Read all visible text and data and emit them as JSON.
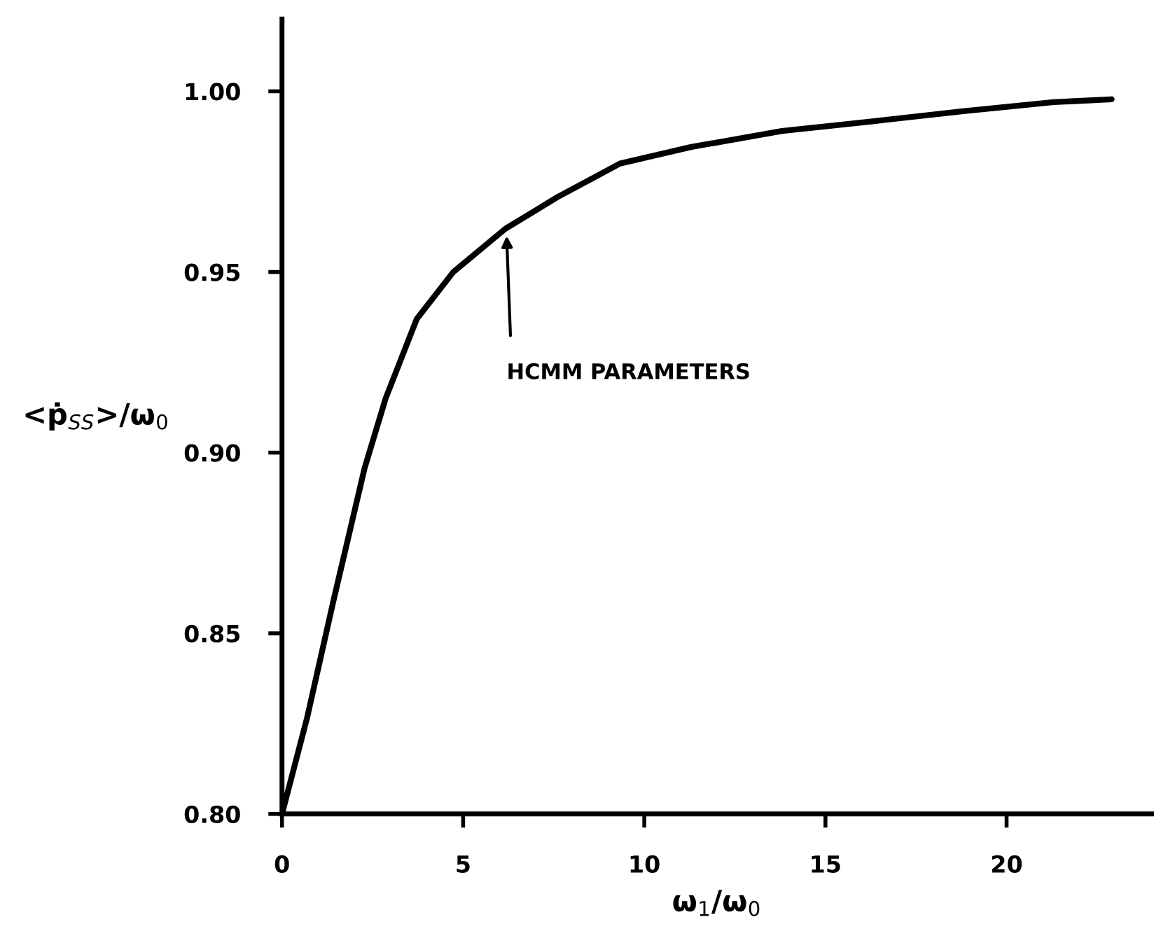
{
  "chart_data": {
    "type": "line",
    "xlabel": "ω$_{1}$/ω$_{0}$",
    "ylabel": "<ṗ$_{SS}$>/ω$_{0}$",
    "xlim": [
      0,
      24
    ],
    "ylim": [
      0.8,
      1.02
    ],
    "xticks": [
      0,
      5,
      10,
      15,
      20
    ],
    "yticks": [
      {
        "value": 0.8,
        "label": "0.80"
      },
      {
        "value": 0.85,
        "label": "0.85"
      },
      {
        "value": 0.9,
        "label": "0.90"
      },
      {
        "value": 0.95,
        "label": "0.95"
      },
      {
        "value": 1.0,
        "label": "1.00"
      }
    ],
    "grid": false,
    "marker": "none",
    "line_style": "solid",
    "annotations": [
      {
        "text": "HCMM PARAMETERS",
        "x": 6.2,
        "y": 0.96
      }
    ],
    "series": [
      {
        "color": "#000000",
        "x": [
          0,
          0.69,
          1.42,
          2.28,
          2.86,
          3.72,
          4.73,
          6.17,
          7.6,
          9.33,
          11.3,
          13.8,
          16.3,
          18.8,
          21.3,
          22.9
        ],
        "values": [
          0.8,
          0.8265,
          0.859,
          0.8957,
          0.915,
          0.937,
          0.95,
          0.962,
          0.9707,
          0.98,
          0.9846,
          0.989,
          0.9917,
          0.9945,
          0.997,
          0.9978
        ]
      }
    ]
  }
}
